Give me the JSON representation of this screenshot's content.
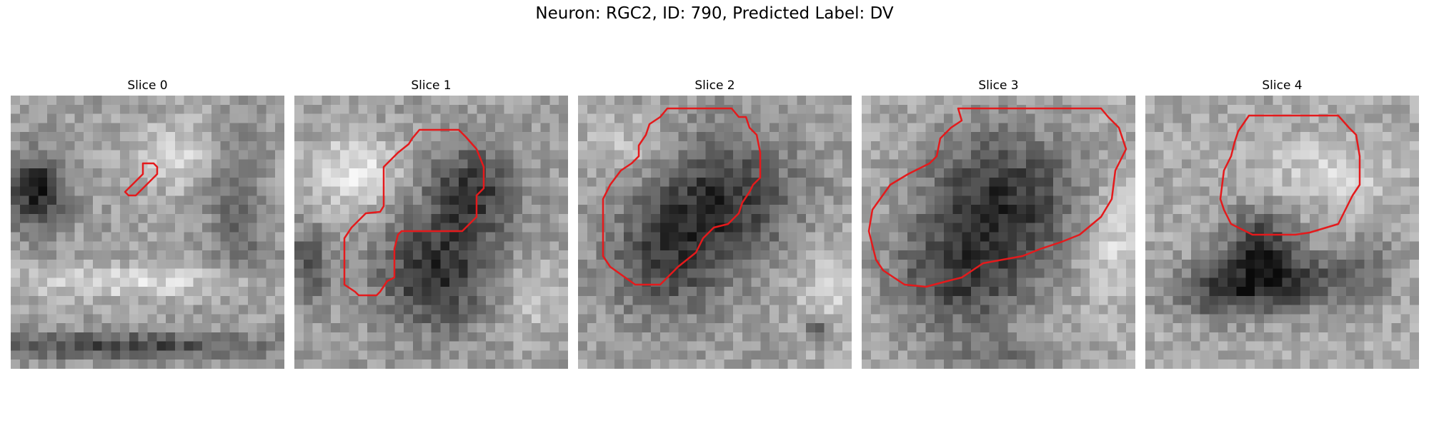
{
  "figure": {
    "title": "Neuron: RGC2, ID: 790, Predicted Label: DV"
  },
  "panels": [
    {
      "title": "Slice 0",
      "colormap": "grayscale",
      "outline_color": "#e41a1c"
    },
    {
      "title": "Slice 1",
      "colormap": "grayscale",
      "outline_color": "#e41a1c"
    },
    {
      "title": "Slice 2",
      "colormap": "grayscale",
      "outline_color": "#e41a1c"
    },
    {
      "title": "Slice 3",
      "colormap": "grayscale",
      "outline_color": "#e41a1c"
    },
    {
      "title": "Slice 4",
      "colormap": "grayscale",
      "outline_color": "#e41a1c"
    }
  ]
}
